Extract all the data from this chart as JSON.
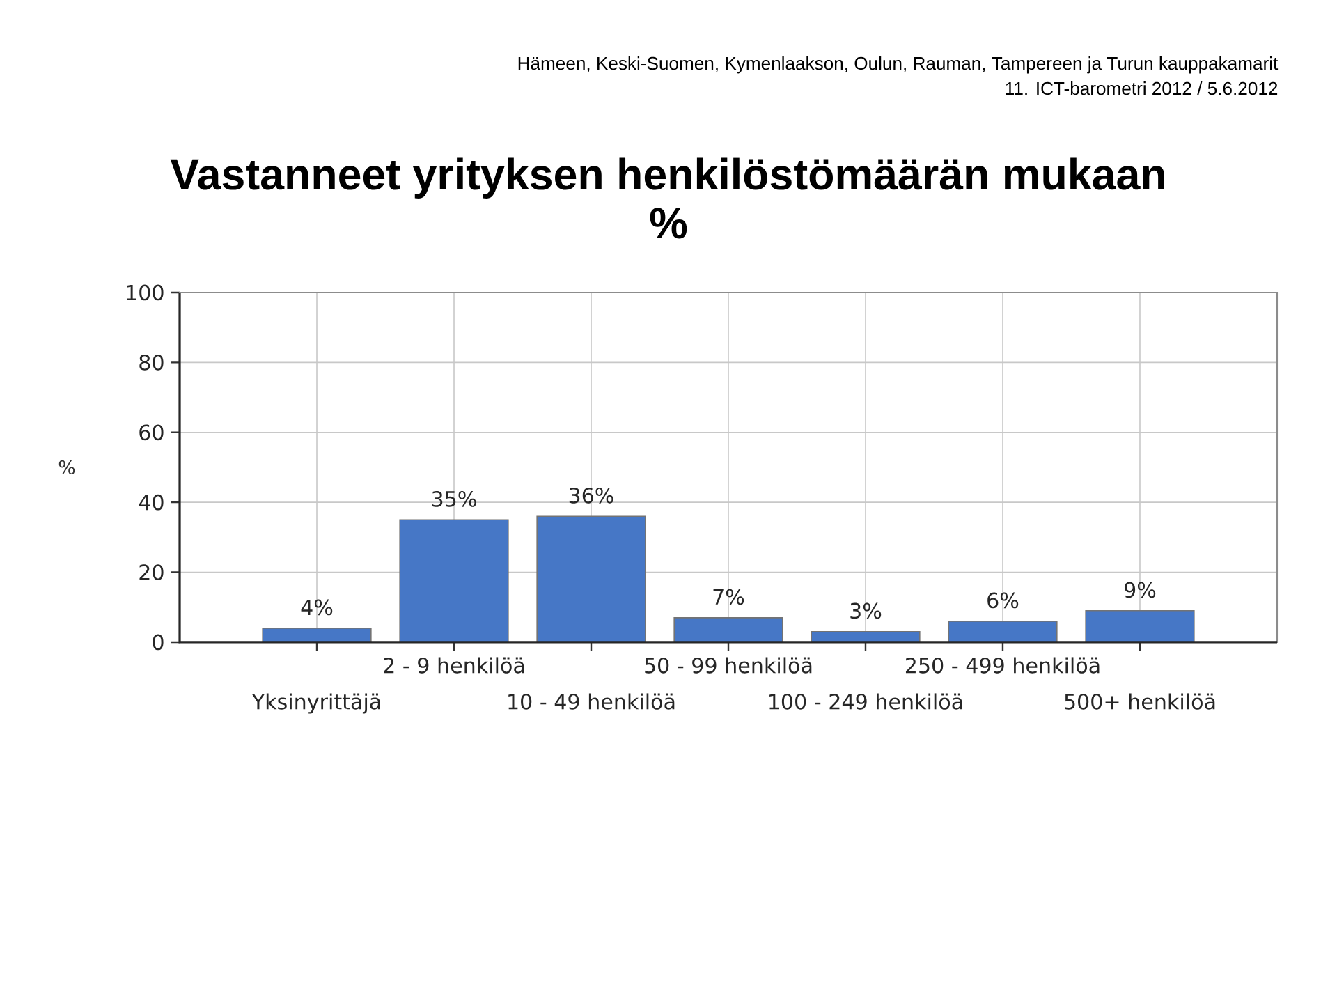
{
  "chart_data": {
    "type": "bar",
    "title": "Vastanneet yrityksen henkilöstömäärän mukaan",
    "subtitle": "%",
    "ylabel": "%",
    "annotations": [
      "Hämeen, Keski-Suomen, Kymenlaakson, Oulun, Rauman, Tampereen ja Turun kauppakamarit",
      "11. ICT-barometri 2012 / 5.6.2012"
    ],
    "categories": [
      "Yksinyrittäjä",
      "2 - 9 henkilöä",
      "10 - 49 henkilöä",
      "50 - 99 henkilöä",
      "100 - 249 henkilöä",
      "250 - 499 henkilöä",
      "500+ henkilöä"
    ],
    "values": [
      4,
      35,
      36,
      7,
      3,
      6,
      9
    ],
    "value_labels": [
      "4%",
      "35%",
      "36%",
      "7%",
      "3%",
      "6%",
      "9%"
    ],
    "color": "#4677c6",
    "ylim": [
      0,
      100
    ],
    "yticks": [
      0,
      20,
      40,
      60,
      80,
      100
    ],
    "grid": true
  }
}
